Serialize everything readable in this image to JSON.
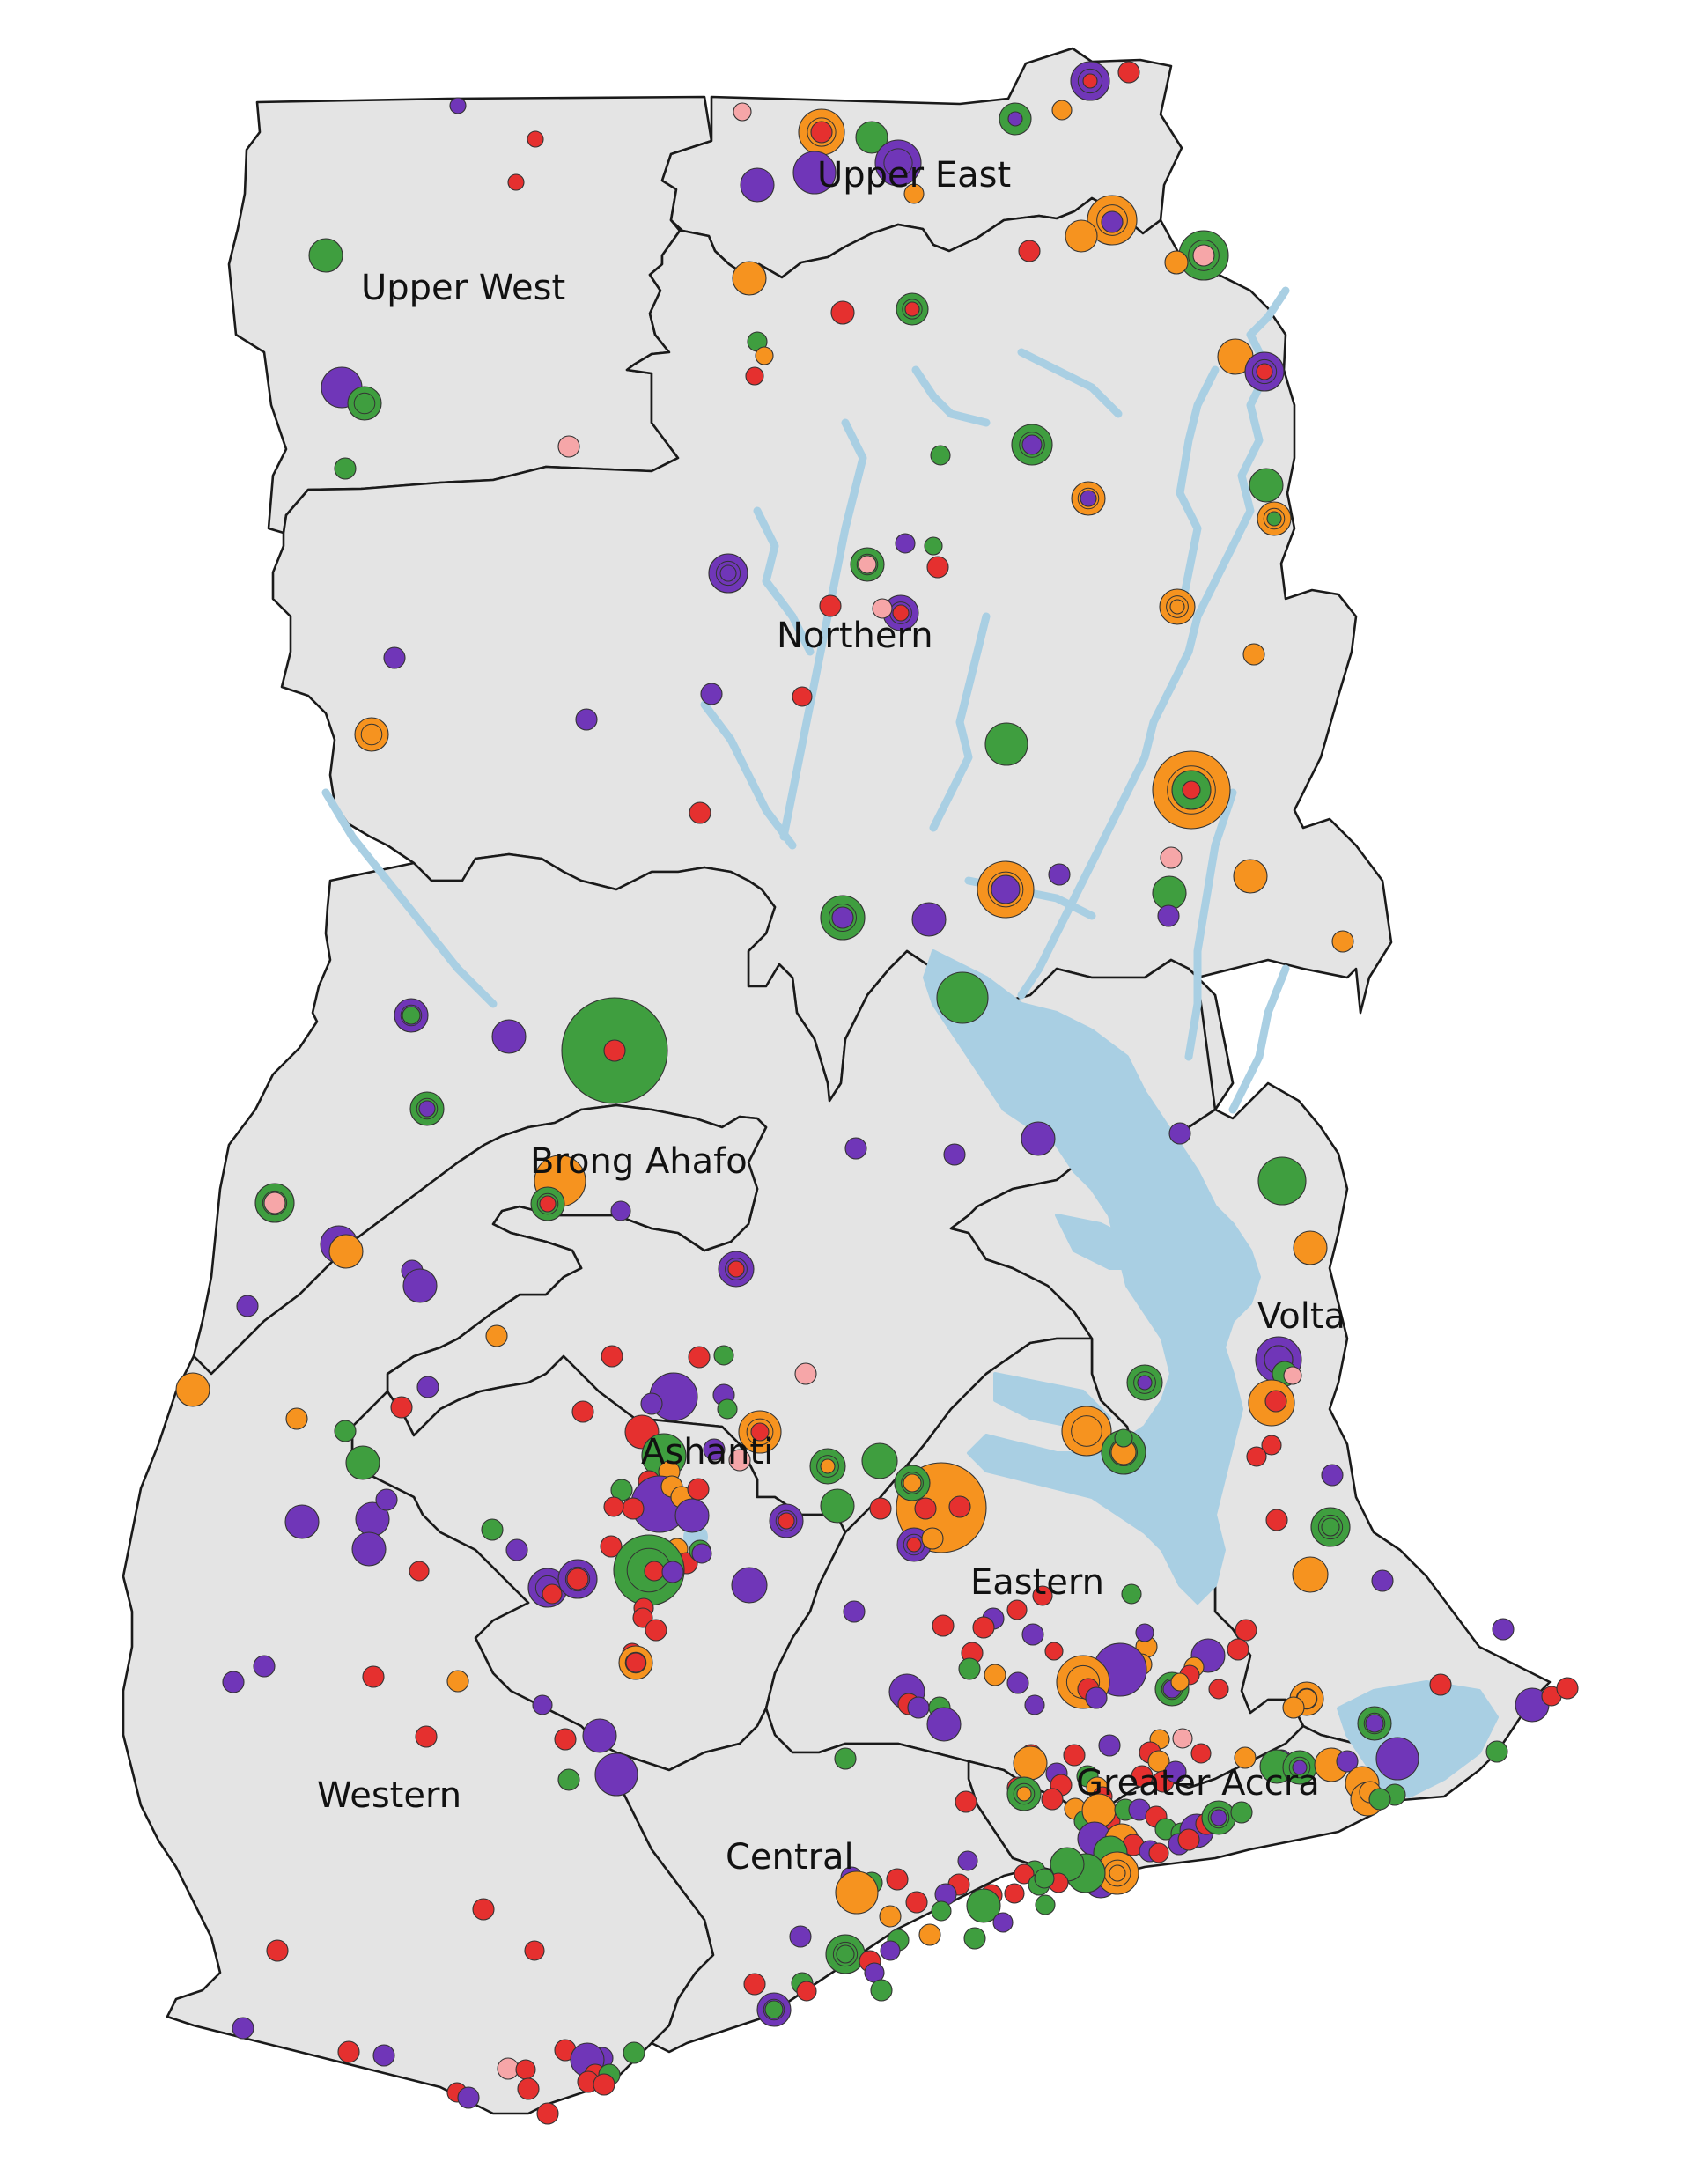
{
  "colors": {
    "land": "#e4e4e4",
    "border": "#1a1a1a",
    "water": "#a9cfe3",
    "green": "#3f9e3f",
    "purple": "#7036b8",
    "red": "#e5302f",
    "orange": "#f6931f",
    "pink": "#f6a6a8"
  },
  "regions": [
    {
      "id": "upper-west",
      "name": "Upper West"
    },
    {
      "id": "upper-east",
      "name": "Upper East"
    },
    {
      "id": "northern",
      "name": "Northern"
    },
    {
      "id": "brong-ahafo",
      "name": "Brong Ahafo"
    },
    {
      "id": "volta",
      "name": "Volta"
    },
    {
      "id": "ashanti",
      "name": "Ashanti"
    },
    {
      "id": "eastern",
      "name": "Eastern"
    },
    {
      "id": "greater-accra",
      "name": "Greater Accra"
    },
    {
      "id": "western",
      "name": "Western"
    },
    {
      "id": "central",
      "name": "Central"
    }
  ]
}
